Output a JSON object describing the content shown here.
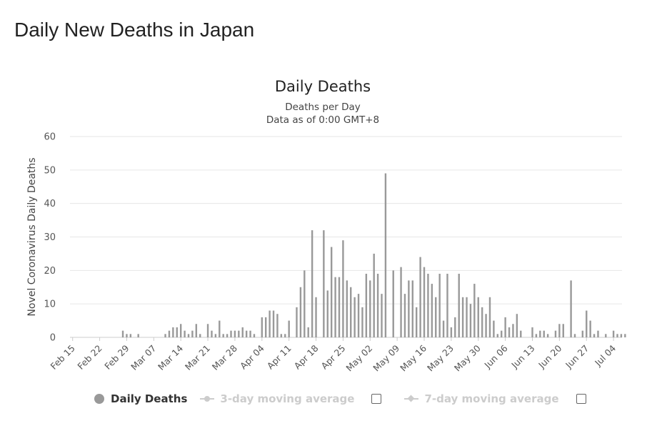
{
  "page": {
    "title": "Daily New Deaths in Japan"
  },
  "chart_data": {
    "type": "bar",
    "title": "Daily Deaths",
    "subtitle_lines": [
      "Deaths per Day",
      "Data as of 0:00 GMT+8"
    ],
    "xlabel": "",
    "ylabel": "Novel Coronavirus Daily Deaths",
    "ylim": [
      0,
      60
    ],
    "yticks": [
      0,
      10,
      20,
      30,
      40,
      50,
      60
    ],
    "grid": true,
    "legend_position": "bottom",
    "bar_color": "#999999",
    "start_date": "Feb 15",
    "xtick_labels": [
      "Feb 15",
      "Feb 22",
      "Feb 29",
      "Mar 07",
      "Mar 14",
      "Mar 21",
      "Mar 28",
      "Apr 04",
      "Apr 11",
      "Apr 18",
      "Apr 25",
      "May 02",
      "May 09",
      "May 16",
      "May 23",
      "May 30",
      "Jun 06",
      "Jun 13",
      "Jun 20",
      "Jun 27",
      "Jul 04"
    ],
    "series": [
      {
        "name": "Daily Deaths",
        "values": [
          0,
          0,
          0,
          0,
          0,
          0,
          0,
          0,
          0,
          0,
          0,
          0,
          0,
          2,
          1,
          1,
          0,
          1,
          0,
          0,
          0,
          0,
          0,
          0,
          1,
          2,
          3,
          3,
          4,
          2,
          1,
          2,
          4,
          1,
          0,
          4,
          2,
          1,
          5,
          1,
          1,
          2,
          2,
          2,
          3,
          2,
          2,
          1,
          0,
          6,
          6,
          8,
          8,
          7,
          1,
          1,
          5,
          0,
          9,
          15,
          20,
          3,
          32,
          12,
          0,
          32,
          14,
          27,
          18,
          18,
          29,
          17,
          15,
          12,
          13,
          9,
          19,
          17,
          25,
          19,
          13,
          49,
          0,
          20,
          0,
          21,
          13,
          17,
          17,
          9,
          24,
          21,
          19,
          16,
          12,
          19,
          5,
          19,
          3,
          6,
          19,
          12,
          12,
          10,
          16,
          12,
          9,
          7,
          12,
          5,
          1,
          2,
          6,
          3,
          4,
          7,
          2,
          0,
          0,
          3,
          1,
          2,
          2,
          1,
          0,
          2,
          4,
          4,
          0,
          17,
          1,
          0,
          2,
          8,
          5,
          1,
          2,
          0,
          1,
          0,
          2,
          1,
          1,
          1
        ]
      }
    ],
    "legend": [
      {
        "label": "Daily Deaths",
        "active": true,
        "has_checkbox": false
      },
      {
        "label": "3-day moving average",
        "active": false,
        "has_checkbox": true
      },
      {
        "label": "7-day moving average",
        "active": false,
        "has_checkbox": true
      }
    ]
  }
}
